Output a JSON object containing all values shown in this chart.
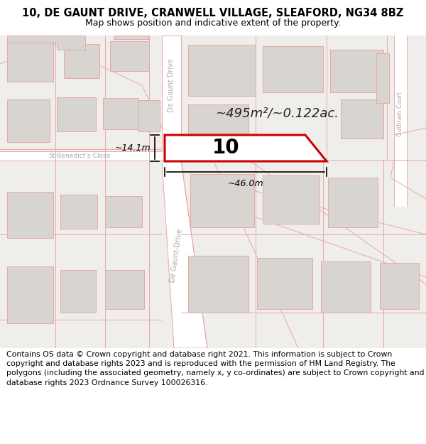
{
  "title_line1": "10, DE GAUNT DRIVE, CRANWELL VILLAGE, SLEAFORD, NG34 8BZ",
  "title_line2": "Map shows position and indicative extent of the property.",
  "footer_text": "Contains OS data © Crown copyright and database right 2021. This information is subject to Crown copyright and database rights 2023 and is reproduced with the permission of HM Land Registry. The polygons (including the associated geometry, namely x, y co-ordinates) are subject to Crown copyright and database rights 2023 Ordnance Survey 100026316.",
  "area_text": "~495m²/~0.122ac.",
  "plot_number": "10",
  "dim_width": "~46.0m",
  "dim_height": "~14.1m",
  "map_bg": "#f0eeeb",
  "building_fill": "#d8d4cf",
  "road_line_color": "#e8a8a8",
  "highlight_edge": "#cc0000",
  "title_fontsize": 10.5,
  "subtitle_fontsize": 9.0,
  "footer_fontsize": 7.8,
  "road_lw": 0.7
}
